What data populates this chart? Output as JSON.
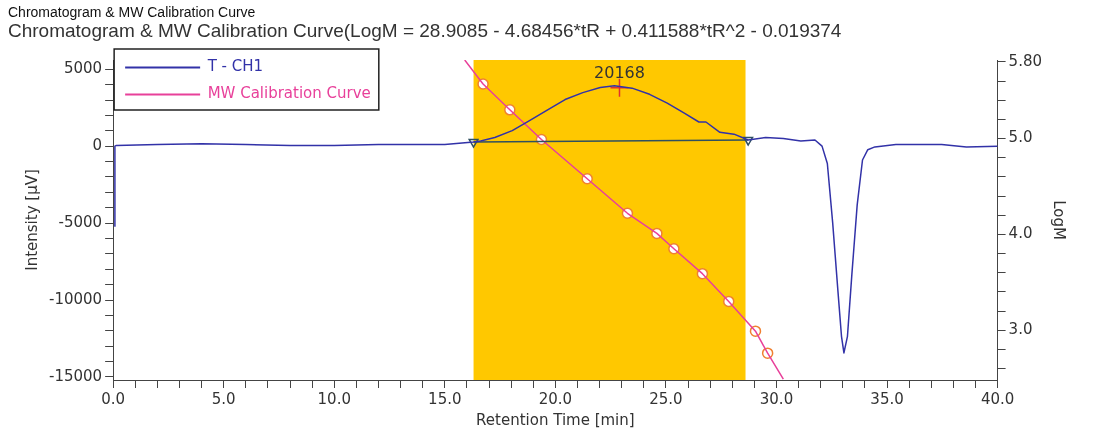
{
  "chart_data": {
    "type": "line",
    "title": "Chromatogram & MW Calibration Curve",
    "subtitle": "Chromatogram & MW Calibration Curve(LogM = 28.9085 - 4.68456*tR + 0.411588*tR^2 - 0.019374",
    "xlabel": "Retention Time [min]",
    "ylabel": "Intensity [µV]",
    "y2label": "LogM",
    "legend": "top left",
    "xlim": [
      0,
      40
    ],
    "xticks": [
      {
        "value": 0,
        "label": "0.0"
      },
      {
        "value": 1,
        "label": null
      },
      {
        "value": 2,
        "label": null
      },
      {
        "value": 3,
        "label": null
      },
      {
        "value": 4,
        "label": null
      },
      {
        "value": 5,
        "label": "5.0"
      },
      {
        "value": 6,
        "label": null
      },
      {
        "value": 7,
        "label": null
      },
      {
        "value": 8,
        "label": null
      },
      {
        "value": 9,
        "label": null
      },
      {
        "value": 10,
        "label": "10.0"
      },
      {
        "value": 11,
        "label": null
      },
      {
        "value": 12,
        "label": null
      },
      {
        "value": 13,
        "label": null
      },
      {
        "value": 14,
        "label": null
      },
      {
        "value": 15,
        "label": "15.0"
      },
      {
        "value": 16,
        "label": null
      },
      {
        "value": 17,
        "label": null
      },
      {
        "value": 18,
        "label": null
      },
      {
        "value": 19,
        "label": null
      },
      {
        "value": 20,
        "label": "20.0"
      },
      {
        "value": 21,
        "label": null
      },
      {
        "value": 22,
        "label": null
      },
      {
        "value": 23,
        "label": null
      },
      {
        "value": 24,
        "label": null
      },
      {
        "value": 25,
        "label": "25.0"
      },
      {
        "value": 26,
        "label": null
      },
      {
        "value": 27,
        "label": null
      },
      {
        "value": 28,
        "label": null
      },
      {
        "value": 29,
        "label": null
      },
      {
        "value": 30,
        "label": "30.0"
      },
      {
        "value": 31,
        "label": null
      },
      {
        "value": 32,
        "label": null
      },
      {
        "value": 33,
        "label": null
      },
      {
        "value": 34,
        "label": null
      },
      {
        "value": 35,
        "label": "35.0"
      },
      {
        "value": 36,
        "label": null
      },
      {
        "value": 37,
        "label": null
      },
      {
        "value": 38,
        "label": null
      },
      {
        "value": 39,
        "label": null
      },
      {
        "value": 40,
        "label": "40.0"
      }
    ],
    "ylim": [
      -15200,
      5600
    ],
    "yticks": [
      -15000,
      {
        "value": -14000,
        "label": null
      },
      {
        "value": -13000,
        "label": null
      },
      {
        "value": -12000,
        "label": null
      },
      {
        "value": -11000,
        "label": null
      },
      -10000,
      {
        "value": -9000,
        "label": null
      },
      {
        "value": -8000,
        "label": null
      },
      {
        "value": -7000,
        "label": null
      },
      {
        "value": -6000,
        "label": null
      },
      -5000,
      {
        "value": -4000,
        "label": null
      },
      {
        "value": -3000,
        "label": null
      },
      {
        "value": -2000,
        "label": null
      },
      {
        "value": -1000,
        "label": null
      },
      0,
      {
        "value": 1000,
        "label": null
      },
      {
        "value": 2000,
        "label": null
      },
      {
        "value": 3000,
        "label": null
      },
      {
        "value": 4000,
        "label": null
      },
      5000
    ],
    "y2lim": [
      2.48,
      5.82
    ],
    "y2ticks": [
      {
        "value": 2.6,
        "label": null
      },
      {
        "value": 2.8,
        "label": null
      },
      {
        "value": 3.0,
        "label": "3.0"
      },
      {
        "value": 3.2,
        "label": null
      },
      {
        "value": 3.4,
        "label": null
      },
      {
        "value": 3.6,
        "label": null
      },
      {
        "value": 3.8,
        "label": null
      },
      {
        "value": 4.0,
        "label": "4.0"
      },
      {
        "value": 4.2,
        "label": null
      },
      {
        "value": 4.4,
        "label": null
      },
      {
        "value": 4.6,
        "label": null
      },
      {
        "value": 4.8,
        "label": null
      },
      {
        "value": 5.0,
        "label": "5.0"
      },
      {
        "value": 5.2,
        "label": null
      },
      {
        "value": 5.4,
        "label": null
      },
      {
        "value": 5.6,
        "label": null
      },
      {
        "value": 5.8,
        "label": "5.80"
      }
    ],
    "bands": [
      {
        "axis": "x",
        "from": 16.3,
        "to": 28.6,
        "color": "#ffc800"
      }
    ],
    "annotations": [
      {
        "text": "20168",
        "x": 22.9,
        "y": 3930
      }
    ],
    "series": [
      {
        "name": "T - CH1",
        "type": "line",
        "color": "#3232a8",
        "marker": "none",
        "x": [
          0.06,
          0.08,
          0.15,
          2,
          4,
          6,
          8,
          10,
          12,
          14,
          15,
          16.3,
          16.62,
          17.26,
          18.05,
          18.85,
          19.65,
          20.44,
          21.24,
          22.03,
          22.67,
          23.47,
          24.26,
          25.06,
          25.85,
          26.49,
          26.81,
          27.44,
          28.08,
          28.72,
          29.51,
          30.31,
          31.1,
          31.74,
          32.06,
          32.3,
          32.54,
          32.78,
          32.94,
          33.05,
          33.21,
          33.41,
          33.65,
          33.89,
          34.13,
          34.45,
          35.4,
          37.47,
          38.59,
          40
        ],
        "values": [
          -5200,
          0,
          50,
          100,
          150,
          100,
          50,
          50,
          100,
          100,
          100,
          270,
          340,
          560,
          1010,
          1680,
          2360,
          3030,
          3480,
          3810,
          3930,
          3770,
          3370,
          2800,
          2130,
          1570,
          1570,
          900,
          780,
          400,
          560,
          490,
          340,
          400,
          0,
          -1130,
          -4950,
          -9440,
          -12360,
          -13440,
          -12360,
          -8320,
          -3820,
          -900,
          -230,
          -50,
          110,
          110,
          -50,
          0
        ]
      },
      {
        "type": "line",
        "color": "#2f5060",
        "marker": "none",
        "x": [
          16.3,
          28.72
        ],
        "values": [
          270,
          400
        ]
      },
      {
        "type": "scatter",
        "color": "#2f5060",
        "marker": "triangle",
        "x": [
          16.3,
          28.72
        ],
        "values": [
          270,
          400
        ]
      },
      {
        "type": "scatter",
        "color": "#e03030",
        "marker": "cross",
        "x": [
          22.9
        ],
        "values": [
          3800
        ]
      },
      {
        "name": "MW Calibration Curve",
        "type": "line",
        "axis": "y2",
        "color": "#e8409a",
        "marker": "none",
        "x": [
          15.9,
          16.73,
          17.94,
          19.37,
          21.44,
          23.26,
          24.59,
          25.36,
          26.65,
          27.84,
          29.05,
          29.6,
          30.31
        ],
        "values": [
          5.82,
          5.57,
          5.3,
          4.99,
          4.58,
          4.22,
          4.01,
          3.85,
          3.59,
          3.3,
          2.99,
          2.76,
          2.49
        ]
      },
      {
        "type": "scatter",
        "axis": "y2",
        "color": "#f08030",
        "marker": "circle",
        "x": [
          16.73,
          17.94,
          19.37,
          21.44,
          23.26,
          24.59,
          25.36,
          26.65,
          27.84,
          29.05,
          29.6
        ],
        "values": [
          5.57,
          5.3,
          4.99,
          4.58,
          4.22,
          4.01,
          3.85,
          3.59,
          3.3,
          2.99,
          2.76
        ]
      }
    ]
  }
}
